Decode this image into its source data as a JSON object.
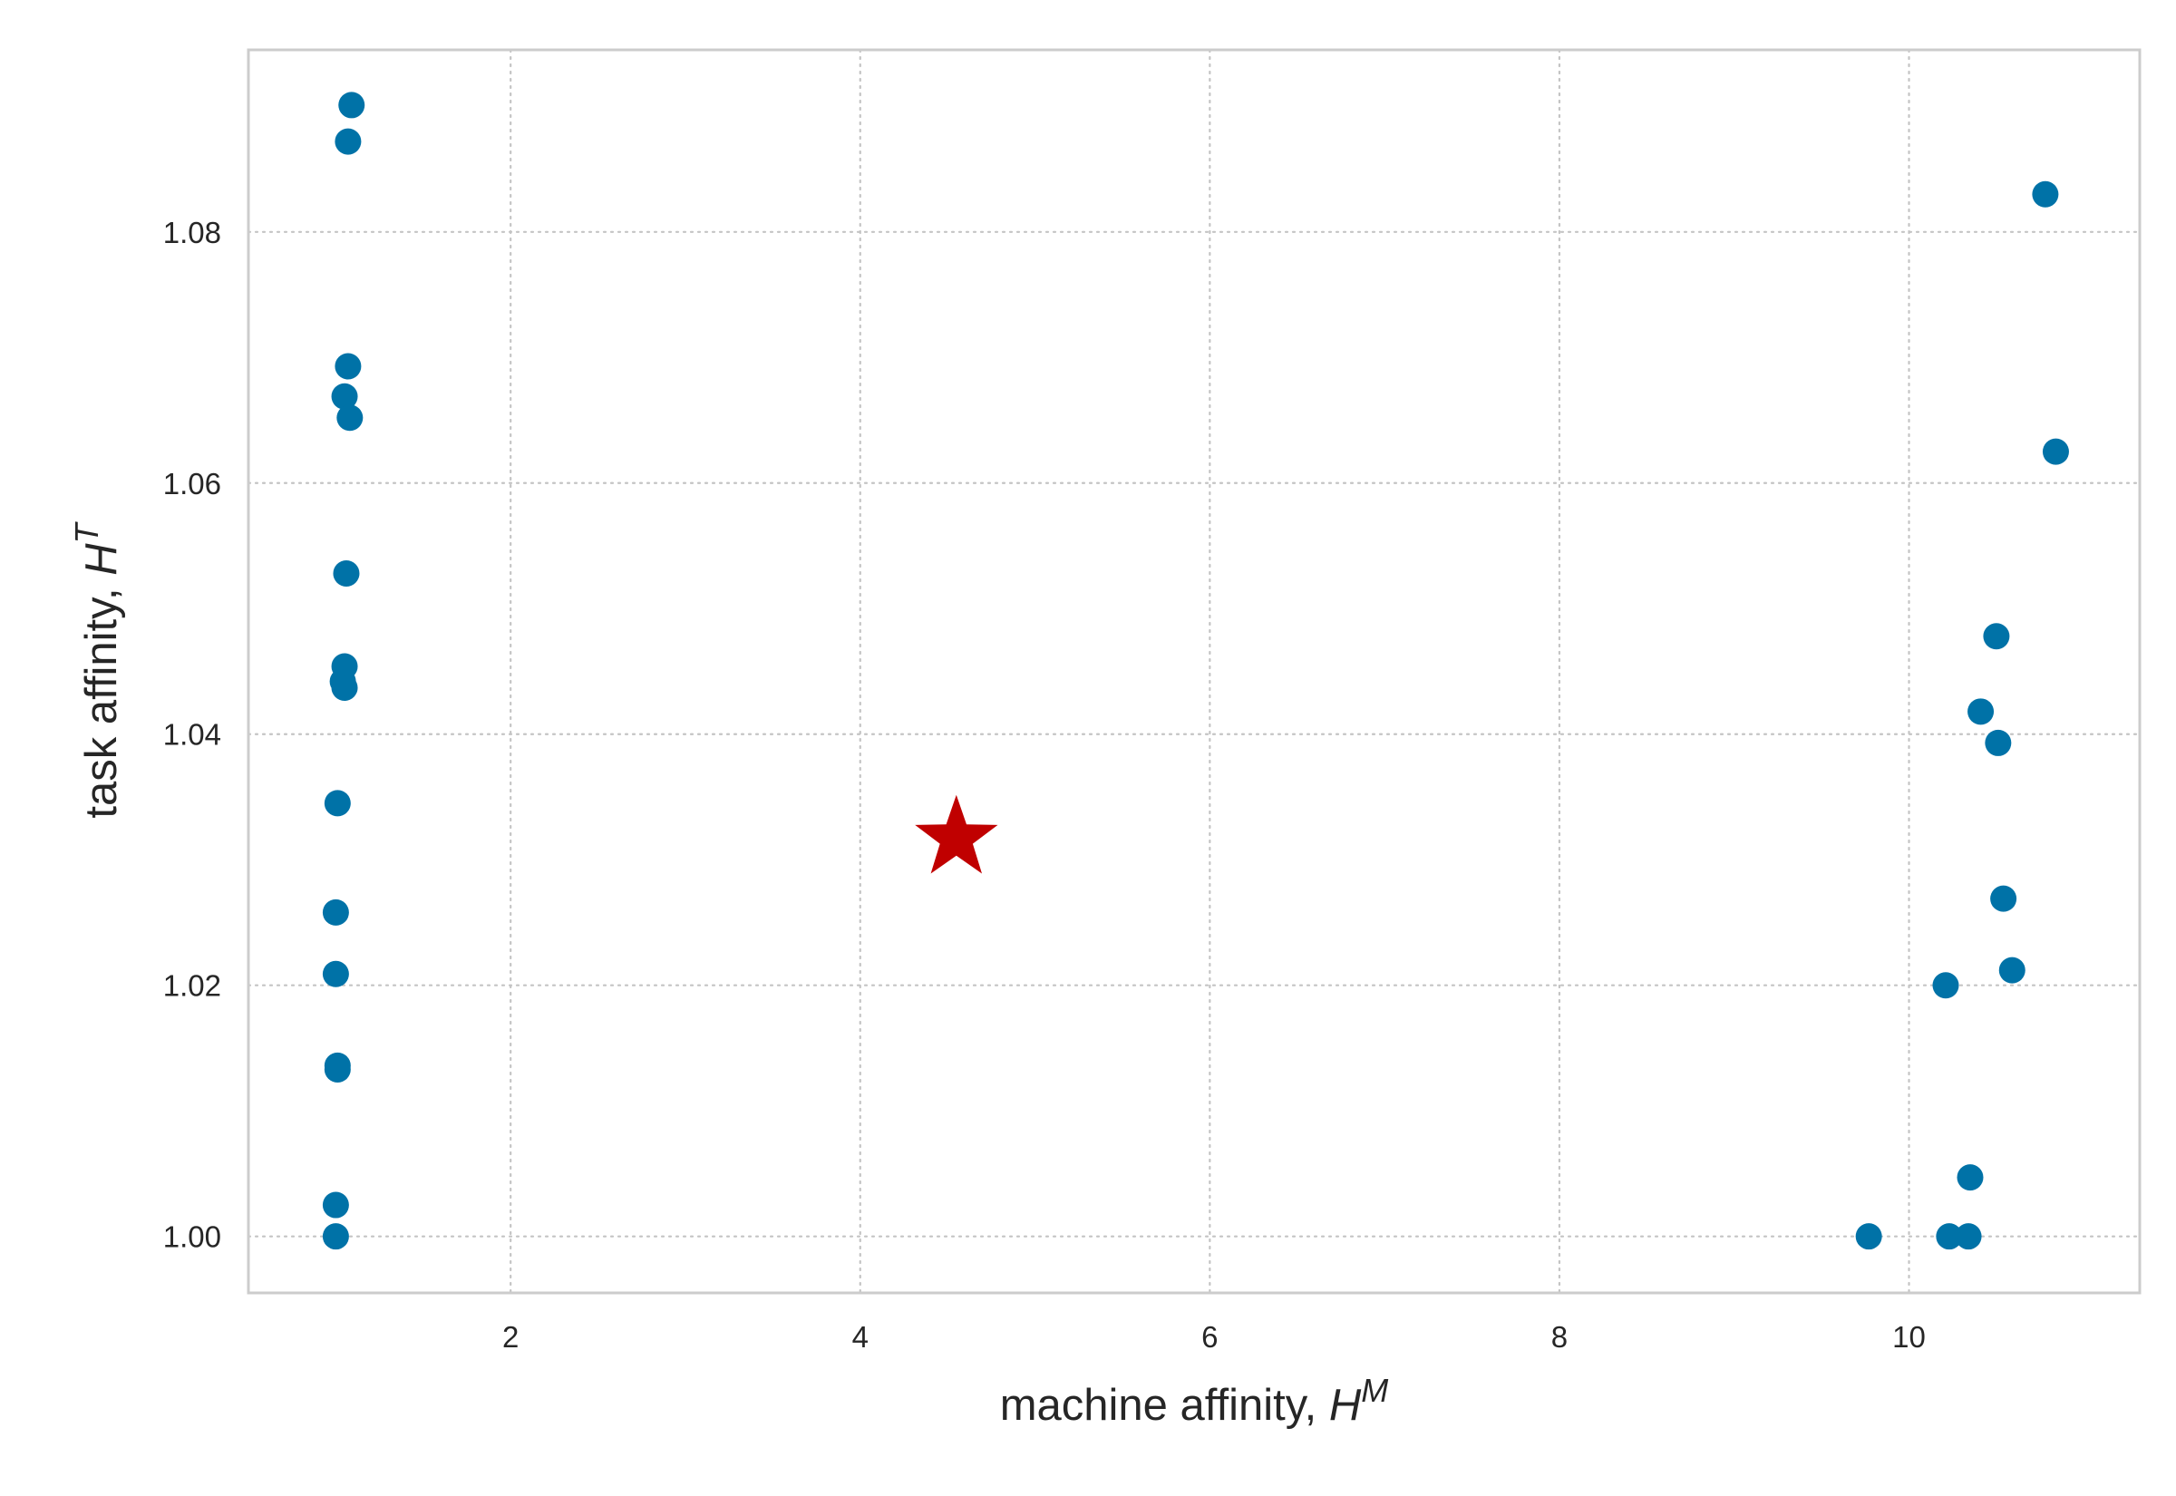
{
  "chart_data": {
    "type": "scatter",
    "xlabel": "machine affinity, H^M",
    "xlabel_text": "machine affinity, ",
    "xlabel_var": "H",
    "xlabel_sup": "M",
    "ylabel": "task affinity, H^T",
    "ylabel_text": "task affinity, ",
    "ylabel_var": "H",
    "ylabel_sup": "T",
    "xlim": [
      0.5,
      11.32
    ],
    "ylim": [
      0.9955,
      1.0945
    ],
    "xticks": [
      2,
      4,
      6,
      8,
      10
    ],
    "xtick_labels": [
      "2",
      "4",
      "6",
      "8",
      "10"
    ],
    "yticks": [
      1.0,
      1.02,
      1.04,
      1.06,
      1.08
    ],
    "ytick_labels": [
      "1.00",
      "1.02",
      "1.04",
      "1.06",
      "1.08"
    ],
    "grid": true,
    "series": [
      {
        "marker": "circle",
        "color": "#0072a7",
        "points": [
          [
            1.09,
            1.0901
          ],
          [
            1.07,
            1.0872
          ],
          [
            1.07,
            1.0693
          ],
          [
            1.05,
            1.0669
          ],
          [
            1.08,
            1.0652
          ],
          [
            1.06,
            1.0528
          ],
          [
            1.05,
            1.0454
          ],
          [
            1.04,
            1.0442
          ],
          [
            1.05,
            1.0437
          ],
          [
            1.01,
            1.0345
          ],
          [
            1.0,
            1.0258
          ],
          [
            1.0,
            1.0209
          ],
          [
            1.01,
            1.0136
          ],
          [
            1.01,
            1.0133
          ],
          [
            1.0,
            1.0025
          ],
          [
            1.0,
            1.0
          ],
          [
            10.78,
            1.083
          ],
          [
            10.84,
            1.0625
          ],
          [
            10.5,
            1.0478
          ],
          [
            10.41,
            1.0418
          ],
          [
            10.51,
            1.0393
          ],
          [
            10.54,
            1.0269
          ],
          [
            10.59,
            1.0212
          ],
          [
            10.21,
            1.02
          ],
          [
            10.35,
            1.0047
          ],
          [
            9.77,
            1.0
          ],
          [
            10.23,
            1.0
          ],
          [
            10.34,
            1.0
          ]
        ]
      },
      {
        "marker": "star",
        "color": "#c00000",
        "points": [
          [
            4.55,
            1.0317
          ]
        ]
      }
    ]
  }
}
